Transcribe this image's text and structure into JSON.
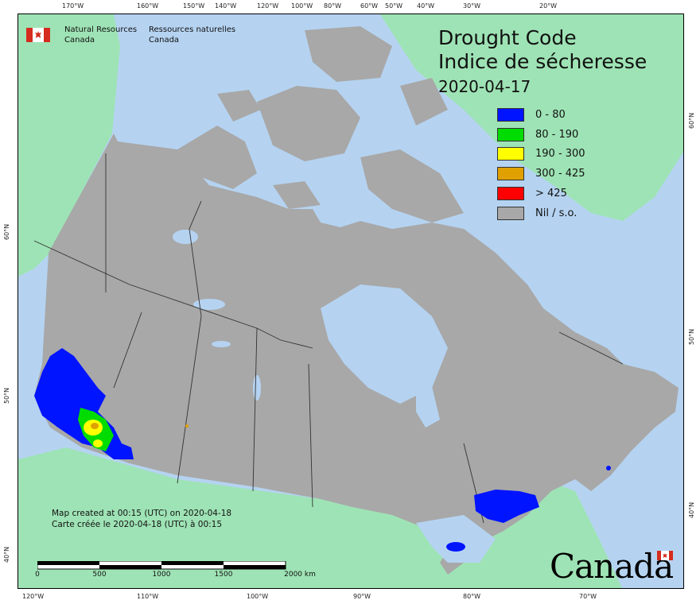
{
  "map": {
    "title_en": "Drought Code",
    "title_fr": "Indice de sécheresse",
    "date": "2020-04-17",
    "agency_en": [
      "Natural Resources",
      "Canada"
    ],
    "agency_fr": [
      "Ressources naturelles",
      "Canada"
    ],
    "credit_en": "Map created at 00:15 (UTC) on 2020-04-18",
    "credit_fr": "Carte créée le 2020-04-18 (UTC) à 00:15",
    "wordmark": "Canada",
    "scale_labels": [
      "0",
      "500",
      "1000",
      "1500",
      "2000 km"
    ],
    "colors": {
      "ocean": "#b5d3f1",
      "land_outside": "#9ee3b5",
      "canada_nil": "#a8a8a8",
      "water": "#b5d3f1"
    }
  },
  "legend": [
    {
      "label": "0 - 80",
      "color": "#0014ff"
    },
    {
      "label": "80 - 190",
      "color": "#00dc00"
    },
    {
      "label": "190 - 300",
      "color": "#ffff00"
    },
    {
      "label": "300 - 425",
      "color": "#e0a000"
    },
    {
      "label": "> 425",
      "color": "#ff0000"
    },
    {
      "label": "Nil / s.o.",
      "color": "#a8a8a8"
    }
  ],
  "axes": {
    "top": [
      "170°W",
      "160°W",
      "150°W",
      "140°W",
      "120°W",
      "100°W",
      "80°W",
      "60°W",
      "50°W",
      "40°W",
      "30°W",
      "20°W"
    ],
    "bottom": [
      "120°W",
      "110°W",
      "100°W",
      "90°W",
      "80°W",
      "70°W"
    ],
    "left": [
      "60°N",
      "50°N",
      "40°N"
    ],
    "right": [
      "60°N",
      "50°N",
      "40°N"
    ]
  }
}
